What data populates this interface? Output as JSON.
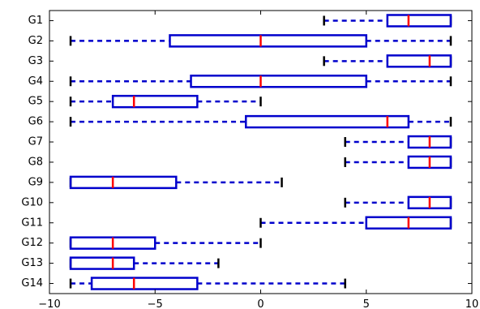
{
  "chart_data": {
    "type": "boxplot",
    "orientation": "horizontal",
    "title": "",
    "xlabel": "",
    "ylabel": "",
    "xlim": [
      -10,
      10
    ],
    "xticks": [
      -10,
      -5,
      0,
      5,
      10
    ],
    "grid": false,
    "colors": {
      "box": "#0000cc",
      "median": "#ff0000",
      "whisker": "#0000cc",
      "cap": "#000000"
    },
    "series": [
      {
        "label": "G1",
        "min": 3,
        "q1": 6,
        "median": 7,
        "q3": 9,
        "max": 9
      },
      {
        "label": "G2",
        "min": -9,
        "q1": -4.3,
        "median": 0,
        "q3": 5,
        "max": 9
      },
      {
        "label": "G3",
        "min": 3,
        "q1": 6,
        "median": 8,
        "q3": 9,
        "max": 9
      },
      {
        "label": "G4",
        "min": -9,
        "q1": -3.3,
        "median": 0,
        "q3": 5,
        "max": 9
      },
      {
        "label": "G5",
        "min": -9,
        "q1": -7,
        "median": -6,
        "q3": -3,
        "max": 0
      },
      {
        "label": "G6",
        "min": -9,
        "q1": -0.7,
        "median": 6,
        "q3": 7,
        "max": 9
      },
      {
        "label": "G7",
        "min": 4,
        "q1": 7,
        "median": 8,
        "q3": 9,
        "max": 9
      },
      {
        "label": "G8",
        "min": 4,
        "q1": 7,
        "median": 8,
        "q3": 9,
        "max": 9
      },
      {
        "label": "G9",
        "min": -9,
        "q1": -9,
        "median": -7,
        "q3": -4,
        "max": 1
      },
      {
        "label": "G10",
        "min": 4,
        "q1": 7,
        "median": 8,
        "q3": 9,
        "max": 9
      },
      {
        "label": "G11",
        "min": 0,
        "q1": 5,
        "median": 7,
        "q3": 9,
        "max": 9
      },
      {
        "label": "G12",
        "min": -9,
        "q1": -9,
        "median": -7,
        "q3": -5,
        "max": 0
      },
      {
        "label": "G13",
        "min": -9,
        "q1": -9,
        "median": -7,
        "q3": -6,
        "max": -2
      },
      {
        "label": "G14",
        "min": -9,
        "q1": -8,
        "median": -6,
        "q3": -3,
        "max": 4
      }
    ]
  }
}
